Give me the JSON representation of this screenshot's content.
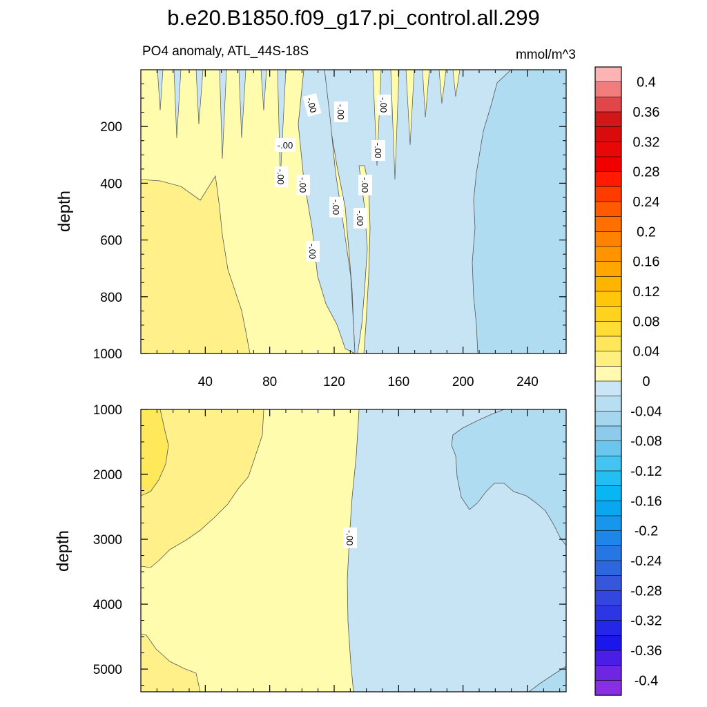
{
  "chart_data": [
    {
      "type": "heatmap",
      "panel": "upper",
      "title": "b.e20.B1850.f09_g17.pi_control.all.299",
      "subtitle_left": "PO4 anomaly, ATL_44S-18S",
      "subtitle_right": "mmol/m^3",
      "xlabel": "",
      "ylabel": "depth",
      "xlim": [
        0,
        264
      ],
      "ylim": [
        1000,
        0
      ],
      "x_ticks": [
        40,
        80,
        120,
        160,
        200,
        240
      ],
      "x_tick_labels": [
        "40",
        "80",
        "120",
        "160",
        "200",
        "240"
      ],
      "y_ticks": [
        200,
        400,
        600,
        800,
        1000
      ],
      "y_tick_labels": [
        "200",
        "400",
        "600",
        "800",
        "1000"
      ],
      "regions": [
        {
          "level": "0 to 0.02",
          "color": "#fffcad",
          "desc": "weak positive anomaly across x 0-135"
        },
        {
          "level": "0.02 to 0.04",
          "color": "#fff08a",
          "desc": "positive anomaly, x 0-70, deeper than ~250"
        },
        {
          "level": "-0.02 to 0",
          "color": "#c7e4f5",
          "desc": "weak negative anomaly, x 135-264"
        },
        {
          "level": "-0.04 to -0.02",
          "color": "#b0dcf2",
          "desc": "negative anomaly, x 205-264"
        }
      ],
      "contour_labels": [
        "-.00",
        "-.00",
        "-.00",
        "-.00",
        "-.00",
        "-.00",
        "-.00",
        "-.00",
        "-.00",
        "-.00",
        "-.00"
      ]
    },
    {
      "type": "heatmap",
      "panel": "lower",
      "xlabel": "",
      "ylabel": "depth",
      "xlim": [
        0,
        264
      ],
      "ylim": [
        5350,
        1000
      ],
      "y_ticks": [
        1000,
        2000,
        3000,
        4000,
        5000
      ],
      "y_tick_labels": [
        "1000",
        "2000",
        "3000",
        "4000",
        "5000"
      ],
      "regions": [
        {
          "level": "0 to 0.02",
          "color": "#fffcad",
          "desc": "weak positive anomaly, x 0-135"
        },
        {
          "level": "0.02 to 0.04",
          "color": "#fff08a",
          "desc": "positive anomaly, western edge"
        },
        {
          "level": "0.04 to 0.06",
          "color": "#ffe95a",
          "desc": "stronger positive anomaly near x 0-20, depth 1000-2000"
        },
        {
          "level": "-0.02 to 0",
          "color": "#c7e4f5",
          "desc": "weak negative anomaly, x 135-264"
        },
        {
          "level": "-0.04 to -0.02",
          "color": "#b0dcf2",
          "desc": "negative anomaly, east x 190-264, depth 1400-3000"
        }
      ],
      "contour_labels": [
        "-.00"
      ]
    }
  ],
  "colorbar": {
    "labels": [
      "0.4",
      "0.36",
      "0.32",
      "0.28",
      "0.24",
      "0.2",
      "0.16",
      "0.12",
      "0.08",
      "0.04",
      "0",
      "-0.04",
      "-0.08",
      "-0.12",
      "-0.16",
      "-0.2",
      "-0.24",
      "-0.28",
      "-0.32",
      "-0.36",
      "-0.4"
    ],
    "colors": [
      "#fbb3b3",
      "#f07c7c",
      "#e0464a",
      "#d01818",
      "#d80c0c",
      "#e80808",
      "#f20000",
      "#ff1a00",
      "#ff3c00",
      "#ff5a00",
      "#ff7000",
      "#ff8200",
      "#ff9400",
      "#ffa600",
      "#ffb400",
      "#ffc60a",
      "#ffd21e",
      "#ffdd34",
      "#ffe65a",
      "#ffef7e",
      "#fffab0",
      "#c8e6f6",
      "#b8def2",
      "#a4d6ee",
      "#8ccbeb",
      "#6ac6ef",
      "#44c4f2",
      "#22bff3",
      "#08b6f4",
      "#0aa6f0",
      "#1696ec",
      "#1e86e8",
      "#2676e4",
      "#2e66e0",
      "#3656dc",
      "#3446e0",
      "#2c36e4",
      "#2426e8",
      "#1a16ec",
      "#4a1ee6",
      "#6e26e2",
      "#8a2ee4"
    ]
  }
}
